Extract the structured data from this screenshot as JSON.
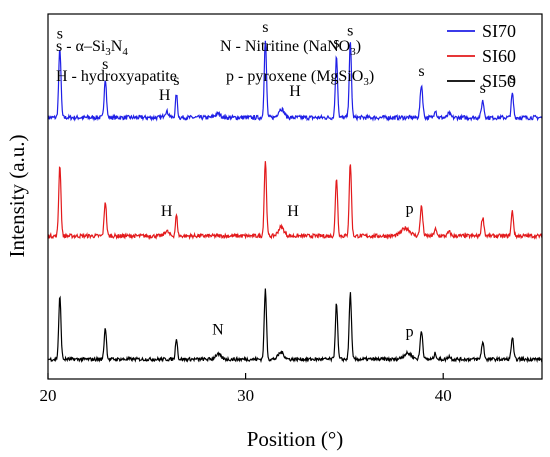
{
  "chart_data": {
    "type": "line",
    "title": "",
    "xlabel": "Position (°)",
    "ylabel": "Intensity (a.u.)",
    "xlim": [
      20,
      45
    ],
    "ylim": [
      0,
      370
    ],
    "x_ticks": [
      20,
      30,
      40
    ],
    "x_tick_labels": [
      "20",
      "30",
      "40"
    ],
    "grid": false,
    "y_ticks_shown": false,
    "legend_position": "top-right",
    "legend_key": [
      {
        "parts": [
          "s - α–Si",
          "3",
          "N",
          "4"
        ],
        "subscripts": [
          1,
          3
        ]
      },
      {
        "parts": [
          "N - Nitritine (NaNO",
          "3",
          ")"
        ],
        "subscripts": [
          1
        ]
      },
      {
        "parts": [
          "H - hydroxyapatite"
        ],
        "subscripts": []
      },
      {
        "parts": [
          "p - pyroxene (MgSiO",
          "3",
          ")"
        ],
        "subscripts": [
          1
        ]
      }
    ],
    "series": [
      {
        "name": "SI70",
        "color": "#1f1fe6",
        "baseline": 265,
        "noise": 2.2,
        "peaks": [
          {
            "x": 20.6,
            "h": 70,
            "w": 0.08
          },
          {
            "x": 22.9,
            "h": 40,
            "w": 0.08
          },
          {
            "x": 26.0,
            "h": 6,
            "w": 0.15
          },
          {
            "x": 26.5,
            "h": 24,
            "w": 0.07
          },
          {
            "x": 28.6,
            "h": 4,
            "w": 0.2
          },
          {
            "x": 31.0,
            "h": 78,
            "w": 0.08
          },
          {
            "x": 31.8,
            "h": 9,
            "w": 0.2
          },
          {
            "x": 34.6,
            "h": 62,
            "w": 0.08
          },
          {
            "x": 35.3,
            "h": 75,
            "w": 0.08
          },
          {
            "x": 38.9,
            "h": 33,
            "w": 0.09
          },
          {
            "x": 39.6,
            "h": 8,
            "w": 0.08
          },
          {
            "x": 40.3,
            "h": 4,
            "w": 0.1
          },
          {
            "x": 42.0,
            "h": 17,
            "w": 0.09
          },
          {
            "x": 43.5,
            "h": 24,
            "w": 0.08
          }
        ],
        "labels": [
          {
            "x": 20.6,
            "text": "s",
            "y": 345
          },
          {
            "x": 22.9,
            "text": "s",
            "y": 314
          },
          {
            "x": 25.9,
            "text": "H",
            "y": 283
          },
          {
            "x": 26.5,
            "text": "s",
            "y": 298
          },
          {
            "x": 31.0,
            "text": "s",
            "y": 352
          },
          {
            "x": 32.5,
            "text": "H",
            "y": 287
          },
          {
            "x": 34.6,
            "text": "s",
            "y": 336
          },
          {
            "x": 35.3,
            "text": "s",
            "y": 348
          },
          {
            "x": 38.9,
            "text": "s",
            "y": 307
          },
          {
            "x": 42.0,
            "text": "s",
            "y": 290
          },
          {
            "x": 43.5,
            "text": "s",
            "y": 300
          }
        ]
      },
      {
        "name": "SI60",
        "color": "#e31a1c",
        "baseline": 145,
        "noise": 2.0,
        "peaks": [
          {
            "x": 20.6,
            "h": 72,
            "w": 0.08
          },
          {
            "x": 22.9,
            "h": 35,
            "w": 0.08
          },
          {
            "x": 26.0,
            "h": 5,
            "w": 0.15
          },
          {
            "x": 26.5,
            "h": 21,
            "w": 0.07
          },
          {
            "x": 31.0,
            "h": 76,
            "w": 0.08
          },
          {
            "x": 31.8,
            "h": 9,
            "w": 0.2
          },
          {
            "x": 34.6,
            "h": 59,
            "w": 0.08
          },
          {
            "x": 35.3,
            "h": 74,
            "w": 0.08
          },
          {
            "x": 38.1,
            "h": 8,
            "w": 0.3
          },
          {
            "x": 38.9,
            "h": 30,
            "w": 0.09
          },
          {
            "x": 39.6,
            "h": 7,
            "w": 0.08
          },
          {
            "x": 40.3,
            "h": 4,
            "w": 0.1
          },
          {
            "x": 42.0,
            "h": 19,
            "w": 0.09
          },
          {
            "x": 43.5,
            "h": 25,
            "w": 0.08
          }
        ],
        "labels": [
          {
            "x": 26.0,
            "text": "H",
            "y": 165
          },
          {
            "x": 32.4,
            "text": "H",
            "y": 165
          },
          {
            "x": 38.3,
            "text": "p",
            "y": 168
          }
        ]
      },
      {
        "name": "SI50",
        "color": "#000000",
        "baseline": 20,
        "noise": 1.8,
        "peaks": [
          {
            "x": 20.6,
            "h": 63,
            "w": 0.08
          },
          {
            "x": 22.9,
            "h": 32,
            "w": 0.08
          },
          {
            "x": 26.5,
            "h": 22,
            "w": 0.07
          },
          {
            "x": 28.6,
            "h": 5,
            "w": 0.2
          },
          {
            "x": 31.0,
            "h": 70,
            "w": 0.08
          },
          {
            "x": 31.8,
            "h": 7,
            "w": 0.2
          },
          {
            "x": 34.6,
            "h": 57,
            "w": 0.08
          },
          {
            "x": 35.3,
            "h": 67,
            "w": 0.08
          },
          {
            "x": 38.2,
            "h": 6,
            "w": 0.3
          },
          {
            "x": 38.9,
            "h": 29,
            "w": 0.09
          },
          {
            "x": 39.6,
            "h": 6,
            "w": 0.08
          },
          {
            "x": 40.3,
            "h": 3,
            "w": 0.1
          },
          {
            "x": 42.0,
            "h": 17,
            "w": 0.09
          },
          {
            "x": 43.5,
            "h": 22,
            "w": 0.08
          }
        ],
        "labels": [
          {
            "x": 28.6,
            "text": "N",
            "y": 45
          },
          {
            "x": 38.3,
            "text": "p",
            "y": 43
          }
        ]
      }
    ]
  }
}
